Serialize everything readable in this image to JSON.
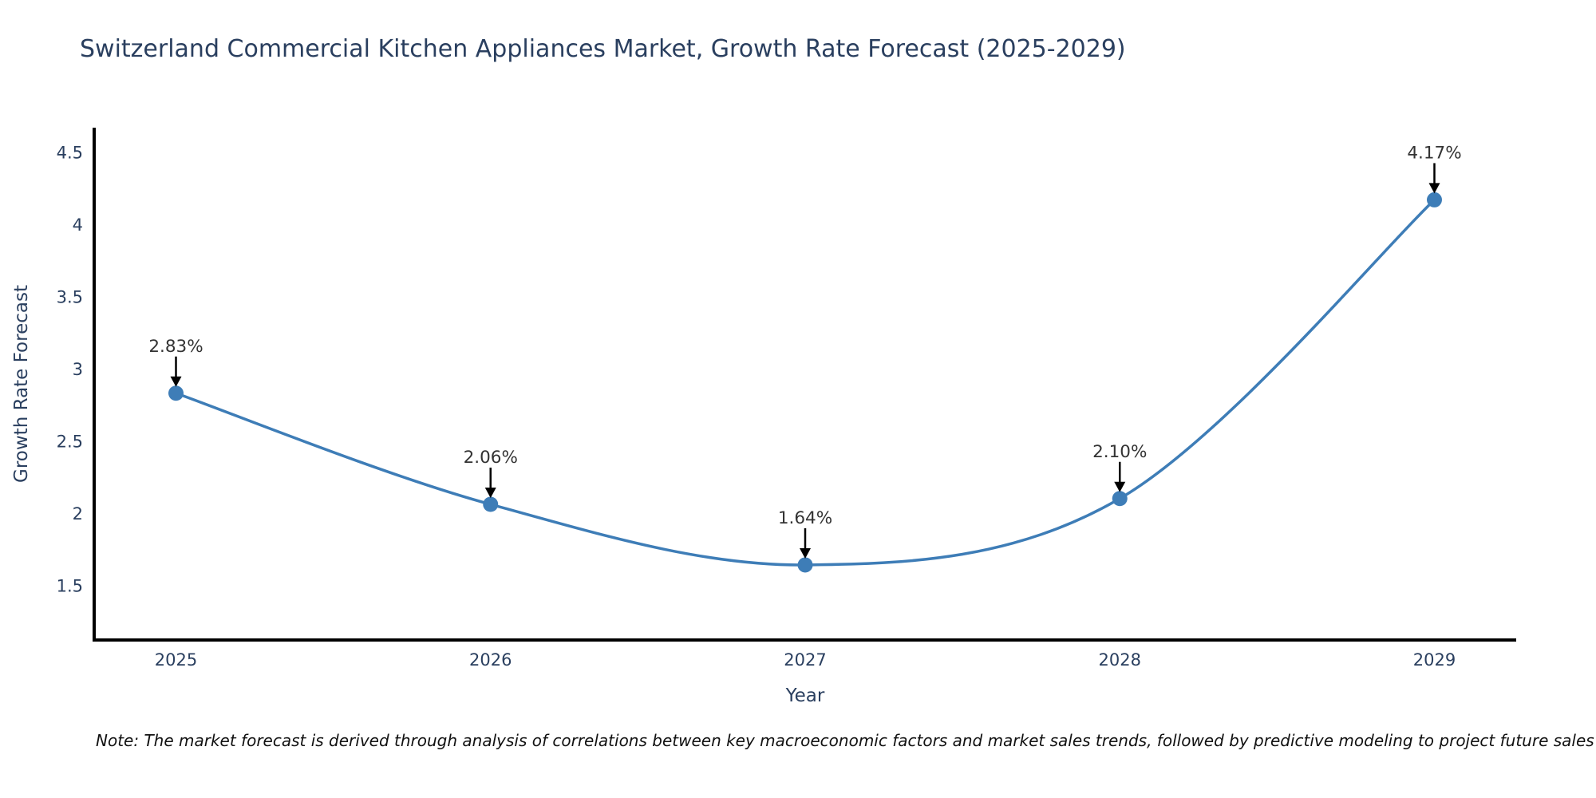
{
  "title": "Switzerland Commercial Kitchen Appliances Market, Growth Rate Forecast (2025-2029)",
  "note": "Note: The market forecast is derived through analysis of correlations between key macroeconomic factors and market sales trends, followed by predictive modeling to project future sales",
  "chart_data": {
    "type": "line",
    "line_shape": "spline",
    "grid": false,
    "title": "Switzerland Commercial Kitchen Appliances Market, Growth Rate Forecast (2025-2029)",
    "xlabel": "Year",
    "ylabel": "Growth Rate Forecast",
    "x": [
      2025,
      2026,
      2027,
      2028,
      2029
    ],
    "series": [
      {
        "name": "Growth Rate Forecast",
        "values": [
          2.83,
          2.06,
          1.64,
          2.1,
          4.17
        ]
      }
    ],
    "point_labels": [
      "2.83%",
      "2.06%",
      "1.64%",
      "2.10%",
      "4.17%"
    ],
    "xticks": [
      "2025",
      "2026",
      "2027",
      "2028",
      "2029"
    ],
    "yticks": [
      1.5,
      2,
      2.5,
      3,
      3.5,
      4,
      4.5
    ],
    "xlim": [
      2024.74,
      2029.26
    ],
    "ylim": [
      1.12,
      4.67
    ],
    "legend": "none",
    "colors": {
      "line": "#3e7db7",
      "marker": "#3e7db7",
      "arrow": "#000000",
      "annotation_text": "#333333",
      "axis_line": "#000000",
      "axis_text": "#2a3f5f"
    }
  }
}
